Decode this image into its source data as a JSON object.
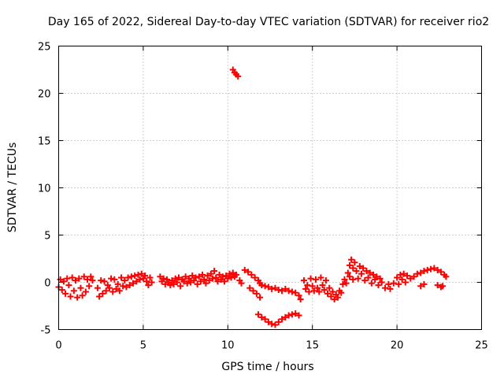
{
  "chart_data": {
    "type": "scatter",
    "title": "Day 165 of 2022, Sidereal Day-to-day VTEC variation (SDTVAR) for receiver rio2",
    "xlabel": "GPS time / hours",
    "ylabel": "SDTVAR / TECUs",
    "xlim": [
      0,
      25
    ],
    "ylim": [
      -5,
      25
    ],
    "xticks": [
      0,
      5,
      10,
      15,
      20,
      25
    ],
    "yticks": [
      -5,
      0,
      5,
      10,
      15,
      20,
      25
    ],
    "grid": true,
    "marker": "plus",
    "series": [
      {
        "name": "SDTVAR",
        "color": "#ff0000",
        "points": [
          [
            0.0,
            -0.5
          ],
          [
            0.1,
            0.3
          ],
          [
            0.2,
            -0.8
          ],
          [
            0.3,
            0.1
          ],
          [
            0.4,
            -1.2
          ],
          [
            0.5,
            0.4
          ],
          [
            0.6,
            -0.3
          ],
          [
            0.7,
            -1.5
          ],
          [
            0.8,
            0.5
          ],
          [
            0.9,
            -0.9
          ],
          [
            1.0,
            0.2
          ],
          [
            1.1,
            -1.6
          ],
          [
            1.2,
            0.4
          ],
          [
            1.3,
            -0.6
          ],
          [
            1.4,
            -1.4
          ],
          [
            1.5,
            0.6
          ],
          [
            1.6,
            -1.0
          ],
          [
            1.7,
            0.3
          ],
          [
            1.8,
            -0.4
          ],
          [
            1.9,
            0.6
          ],
          [
            2.0,
            0.2
          ],
          [
            2.3,
            -0.6
          ],
          [
            2.4,
            -1.5
          ],
          [
            2.5,
            0.2
          ],
          [
            2.6,
            -1.2
          ],
          [
            2.7,
            0.1
          ],
          [
            2.8,
            -0.9
          ],
          [
            2.9,
            -0.3
          ],
          [
            3.0,
            -0.6
          ],
          [
            3.1,
            0.4
          ],
          [
            3.2,
            -1.0
          ],
          [
            3.3,
            0.3
          ],
          [
            3.4,
            -0.7
          ],
          [
            3.5,
            -0.2
          ],
          [
            3.6,
            -0.9
          ],
          [
            3.7,
            0.5
          ],
          [
            3.8,
            -0.4
          ],
          [
            3.9,
            0.2
          ],
          [
            4.0,
            -0.5
          ],
          [
            4.1,
            0.5
          ],
          [
            4.2,
            -0.3
          ],
          [
            4.3,
            0.6
          ],
          [
            4.4,
            -0.1
          ],
          [
            4.5,
            0.7
          ],
          [
            4.6,
            0.1
          ],
          [
            4.7,
            0.8
          ],
          [
            4.8,
            0.3
          ],
          [
            4.9,
            0.9
          ],
          [
            5.0,
            0.4
          ],
          [
            5.1,
            0.7
          ],
          [
            5.2,
            0.1
          ],
          [
            5.3,
            -0.3
          ],
          [
            5.4,
            0.5
          ],
          [
            5.5,
            0.0
          ],
          [
            6.0,
            0.6
          ],
          [
            6.1,
            0.1
          ],
          [
            6.2,
            0.4
          ],
          [
            6.3,
            -0.2
          ],
          [
            6.4,
            0.3
          ],
          [
            6.5,
            0.0
          ],
          [
            6.6,
            -0.3
          ],
          [
            6.7,
            0.2
          ],
          [
            6.8,
            -0.2
          ],
          [
            6.9,
            0.4
          ],
          [
            7.0,
            0.0
          ],
          [
            7.1,
            0.5
          ],
          [
            7.2,
            -0.4
          ],
          [
            7.3,
            0.3
          ],
          [
            7.4,
            0.1
          ],
          [
            7.5,
            0.6
          ],
          [
            7.6,
            -0.1
          ],
          [
            7.7,
            0.4
          ],
          [
            7.8,
            0.0
          ],
          [
            7.9,
            0.7
          ],
          [
            8.0,
            0.2
          ],
          [
            8.1,
            0.5
          ],
          [
            8.2,
            -0.2
          ],
          [
            8.3,
            0.6
          ],
          [
            8.4,
            0.1
          ],
          [
            8.5,
            0.8
          ],
          [
            8.6,
            0.3
          ],
          [
            8.7,
            -0.1
          ],
          [
            8.8,
            0.7
          ],
          [
            8.9,
            0.2
          ],
          [
            9.0,
            0.9
          ],
          [
            9.1,
            0.4
          ],
          [
            9.2,
            1.2
          ],
          [
            9.3,
            0.5
          ],
          [
            9.4,
            0.1
          ],
          [
            9.5,
            0.8
          ],
          [
            9.6,
            0.3
          ],
          [
            9.7,
            0.6
          ],
          [
            9.8,
            0.1
          ],
          [
            9.9,
            0.7
          ],
          [
            10.0,
            0.4
          ],
          [
            10.1,
            0.9
          ],
          [
            10.2,
            0.5
          ],
          [
            10.3,
            1.0
          ],
          [
            10.4,
            0.6
          ],
          [
            10.5,
            0.8
          ],
          [
            10.3,
            22.5
          ],
          [
            10.4,
            22.2
          ],
          [
            10.5,
            22.0
          ],
          [
            10.6,
            21.8
          ],
          [
            10.7,
            0.2
          ],
          [
            10.8,
            -0.1
          ],
          [
            11.0,
            1.3
          ],
          [
            11.2,
            1.1
          ],
          [
            11.4,
            0.8
          ],
          [
            11.6,
            0.5
          ],
          [
            11.8,
            0.2
          ],
          [
            11.9,
            -0.1
          ],
          [
            11.3,
            -0.6
          ],
          [
            11.5,
            -0.9
          ],
          [
            11.7,
            -1.2
          ],
          [
            11.9,
            -1.6
          ],
          [
            12.0,
            -0.3
          ],
          [
            12.2,
            -0.4
          ],
          [
            12.4,
            -0.5
          ],
          [
            12.6,
            -0.7
          ],
          [
            12.8,
            -0.6
          ],
          [
            13.0,
            -0.8
          ],
          [
            13.2,
            -0.9
          ],
          [
            13.4,
            -0.7
          ],
          [
            13.6,
            -0.9
          ],
          [
            13.8,
            -1.0
          ],
          [
            14.0,
            -1.1
          ],
          [
            14.2,
            -1.4
          ],
          [
            14.3,
            -1.8
          ],
          [
            11.8,
            -3.4
          ],
          [
            12.0,
            -3.7
          ],
          [
            12.2,
            -3.9
          ],
          [
            12.4,
            -4.2
          ],
          [
            12.6,
            -4.4
          ],
          [
            12.8,
            -4.5
          ],
          [
            13.0,
            -4.2
          ],
          [
            13.2,
            -3.9
          ],
          [
            13.4,
            -3.7
          ],
          [
            13.6,
            -3.5
          ],
          [
            13.8,
            -3.4
          ],
          [
            14.0,
            -3.3
          ],
          [
            14.2,
            -3.5
          ],
          [
            14.5,
            0.2
          ],
          [
            14.6,
            -0.7
          ],
          [
            14.7,
            -0.3
          ],
          [
            14.8,
            -1.0
          ],
          [
            14.9,
            0.4
          ],
          [
            15.0,
            -0.4
          ],
          [
            15.1,
            -0.9
          ],
          [
            15.2,
            0.3
          ],
          [
            15.3,
            -0.6
          ],
          [
            15.4,
            -1.0
          ],
          [
            15.5,
            0.5
          ],
          [
            15.6,
            -0.3
          ],
          [
            15.7,
            -0.8
          ],
          [
            15.8,
            0.2
          ],
          [
            15.9,
            -1.2
          ],
          [
            16.0,
            -0.6
          ],
          [
            16.1,
            -1.5
          ],
          [
            16.2,
            -1.0
          ],
          [
            16.3,
            -1.8
          ],
          [
            16.4,
            -1.3
          ],
          [
            16.5,
            -1.6
          ],
          [
            16.6,
            -0.9
          ],
          [
            16.7,
            -1.1
          ],
          [
            16.8,
            -0.2
          ],
          [
            16.9,
            0.3
          ],
          [
            17.0,
            -0.1
          ],
          [
            17.1,
            1.0
          ],
          [
            17.2,
            1.8
          ],
          [
            17.3,
            2.4
          ],
          [
            17.4,
            1.5
          ],
          [
            17.2,
            0.6
          ],
          [
            17.4,
            0.3
          ],
          [
            17.5,
            2.1
          ],
          [
            17.6,
            1.2
          ],
          [
            17.7,
            0.4
          ],
          [
            17.8,
            1.7
          ],
          [
            17.9,
            0.9
          ],
          [
            18.0,
            1.5
          ],
          [
            18.1,
            0.2
          ],
          [
            18.2,
            1.2
          ],
          [
            18.3,
            0.5
          ],
          [
            18.4,
            1.0
          ],
          [
            18.5,
            -0.1
          ],
          [
            18.6,
            0.8
          ],
          [
            18.7,
            0.3
          ],
          [
            18.8,
            0.6
          ],
          [
            18.9,
            -0.3
          ],
          [
            19.0,
            0.4
          ],
          [
            19.1,
            0.0
          ],
          [
            19.3,
            -0.6
          ],
          [
            19.5,
            -0.2
          ],
          [
            19.6,
            -0.7
          ],
          [
            19.8,
            -0.1
          ],
          [
            20.0,
            0.5
          ],
          [
            20.1,
            -0.2
          ],
          [
            20.2,
            0.8
          ],
          [
            20.3,
            0.3
          ],
          [
            20.4,
            0.9
          ],
          [
            20.5,
            0.0
          ],
          [
            20.6,
            0.7
          ],
          [
            20.8,
            0.4
          ],
          [
            21.0,
            0.6
          ],
          [
            21.2,
            0.9
          ],
          [
            21.4,
            1.0
          ],
          [
            21.6,
            1.2
          ],
          [
            21.8,
            1.3
          ],
          [
            22.0,
            1.4
          ],
          [
            22.2,
            1.5
          ],
          [
            22.4,
            1.3
          ],
          [
            22.6,
            1.1
          ],
          [
            22.8,
            0.8
          ],
          [
            22.9,
            0.6
          ],
          [
            21.4,
            -0.4
          ],
          [
            21.6,
            -0.2
          ],
          [
            22.4,
            -0.3
          ],
          [
            22.6,
            -0.5
          ],
          [
            22.7,
            -0.4
          ]
        ]
      }
    ]
  }
}
